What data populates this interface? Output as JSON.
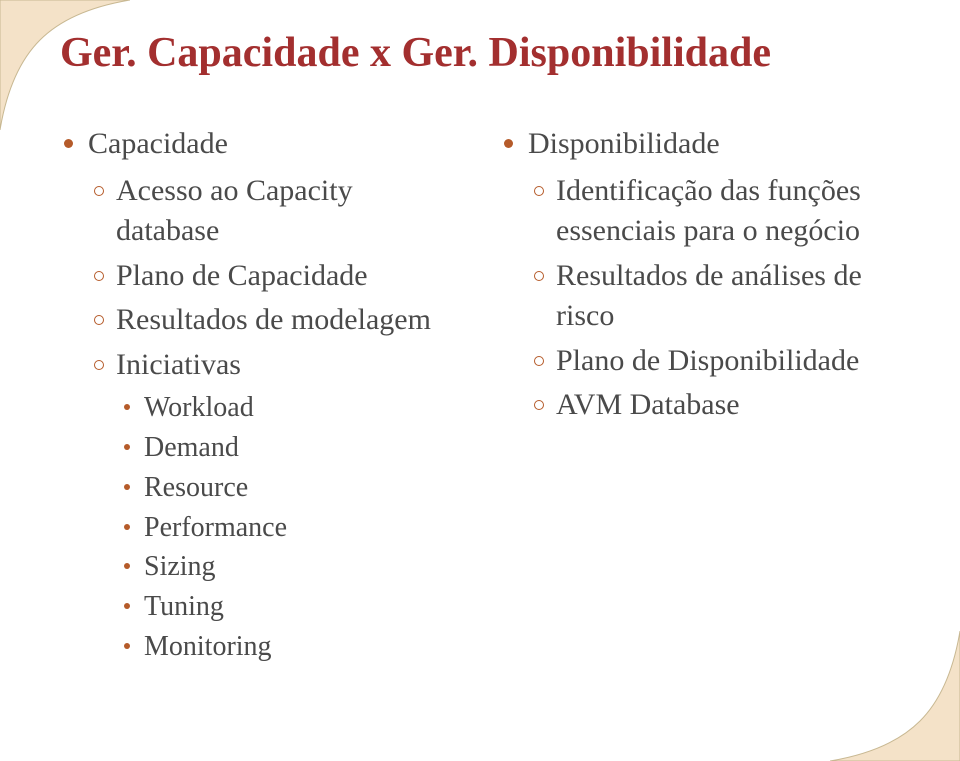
{
  "title": "Ger. Capacidade x Ger. Disponibilidade",
  "title_color": "#a32f2f",
  "text_color": "#4a4a4a",
  "bullet_color": "#b55b2a",
  "corner_fill": "#f4e2c8",
  "corner_stroke": "#c8b892",
  "background": "#ffffff",
  "left": {
    "heading": "Capacidade",
    "items": [
      {
        "label": "Acesso ao Capacity database"
      },
      {
        "label": "Plano de Capacidade"
      },
      {
        "label": "Resultados de modelagem"
      },
      {
        "label": "Iniciativas",
        "sub": [
          "Workload",
          "Demand",
          "Resource",
          "Performance",
          "Sizing",
          "Tuning",
          "Monitoring"
        ]
      }
    ]
  },
  "right": {
    "heading": "Disponibilidade",
    "items": [
      {
        "label": "Identificação das funções essenciais para o negócio"
      },
      {
        "label": "Resultados de análises de risco"
      },
      {
        "label": "Plano de Disponibilidade"
      },
      {
        "label": "AVM Database"
      }
    ]
  }
}
